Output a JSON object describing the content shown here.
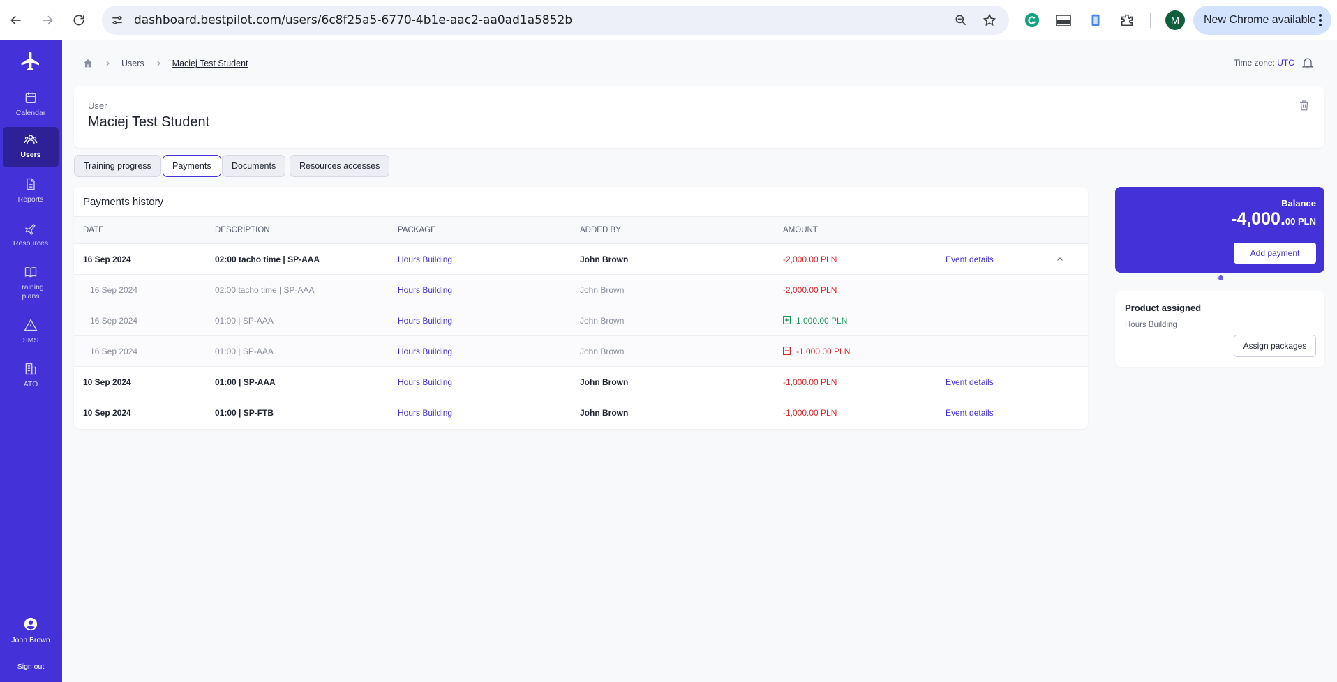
{
  "browser": {
    "url": "dashboard.bestpilot.com/users/6c8f25a5-6770-4b1e-aac2-aa0ad1a5852b",
    "profile_initial": "M",
    "update_label": "New Chrome available"
  },
  "sidebar": {
    "items": [
      {
        "label": "Calendar",
        "icon": "calendar-icon"
      },
      {
        "label": "Users",
        "icon": "users-icon"
      },
      {
        "label": "Reports",
        "icon": "file-icon"
      },
      {
        "label": "Resources",
        "icon": "plane-icon"
      },
      {
        "label": "Training plans",
        "icon": "book-icon"
      },
      {
        "label": "SMS",
        "icon": "warning-icon"
      },
      {
        "label": "ATO",
        "icon": "building-icon"
      }
    ],
    "user_name": "John Brown",
    "sign_out": "Sign out"
  },
  "breadcrumb": {
    "items": [
      "Users",
      "Maciej Test Student"
    ]
  },
  "header": {
    "timezone_label": "Time zone:",
    "timezone_value": "UTC"
  },
  "user_card": {
    "kicker": "User",
    "name": "Maciej Test Student"
  },
  "tabs": [
    {
      "label": "Training progress"
    },
    {
      "label": "Payments"
    },
    {
      "label": "Documents"
    },
    {
      "label": "Resources accesses"
    }
  ],
  "payments": {
    "title": "Payments history",
    "columns": [
      "Date",
      "Description",
      "Package",
      "Added by",
      "Amount"
    ],
    "rows": [
      {
        "date": "16 Sep 2024",
        "description": "02:00 tacho time | SP-AAA",
        "package": "Hours Building",
        "added_by": "John Brown",
        "amount": "-2,000.00 PLN",
        "link": "Event details"
      },
      {
        "date": "16 Sep 2024",
        "description": "02:00 tacho time | SP-AAA",
        "package": "Hours Building",
        "added_by": "John Brown",
        "amount": "-2,000.00 PLN"
      },
      {
        "date": "16 Sep 2024",
        "description": "01:00 | SP-AAA",
        "package": "Hours Building",
        "added_by": "John Brown",
        "amount": "1,000.00 PLN"
      },
      {
        "date": "16 Sep 2024",
        "description": "01:00 | SP-AAA",
        "package": "Hours Building",
        "added_by": "John Brown",
        "amount": "-1,000.00 PLN"
      },
      {
        "date": "10 Sep 2024",
        "description": "01:00 | SP-AAA",
        "package": "Hours Building",
        "added_by": "John Brown",
        "amount": "-1,000.00 PLN",
        "link": "Event details"
      },
      {
        "date": "10 Sep 2024",
        "description": "01:00 | SP-FTB",
        "package": "Hours Building",
        "added_by": "John Brown",
        "amount": "-1,000.00 PLN",
        "link": "Event details"
      }
    ]
  },
  "balance": {
    "label": "Balance",
    "amount_major": "-4,000.",
    "amount_minor": "00 PLN",
    "add_payment": "Add payment"
  },
  "product": {
    "title": "Product assigned",
    "value": "Hours Building",
    "assign_button": "Assign packages"
  }
}
